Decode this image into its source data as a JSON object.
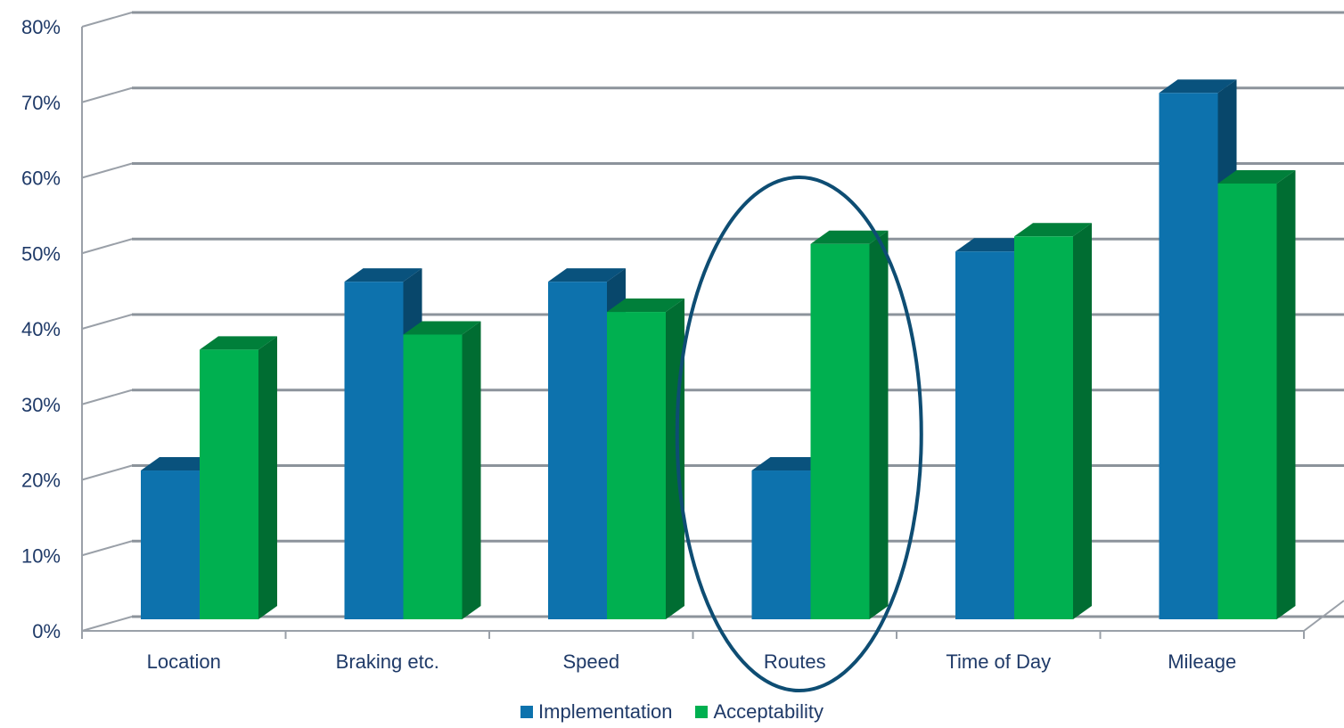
{
  "chart_data": {
    "type": "bar",
    "title": "",
    "xlabel": "",
    "ylabel": "",
    "categories": [
      "Location",
      "Braking etc.",
      "Speed",
      "Routes",
      "Time of Day",
      "Mileage"
    ],
    "series": [
      {
        "name": "Implementation",
        "values": [
          21,
          46,
          46,
          21,
          50,
          71
        ],
        "color": "#0d72ad"
      },
      {
        "name": "Acceptability",
        "values": [
          37,
          39,
          42,
          51,
          52,
          59
        ],
        "color": "#00b050"
      }
    ],
    "ylim": [
      0,
      80
    ],
    "yticks": [
      "0%",
      "10%",
      "20%",
      "30%",
      "40%",
      "50%",
      "60%",
      "70%",
      "80%"
    ],
    "grid": true,
    "legend_position": "bottom",
    "highlighted_category": "Routes"
  }
}
